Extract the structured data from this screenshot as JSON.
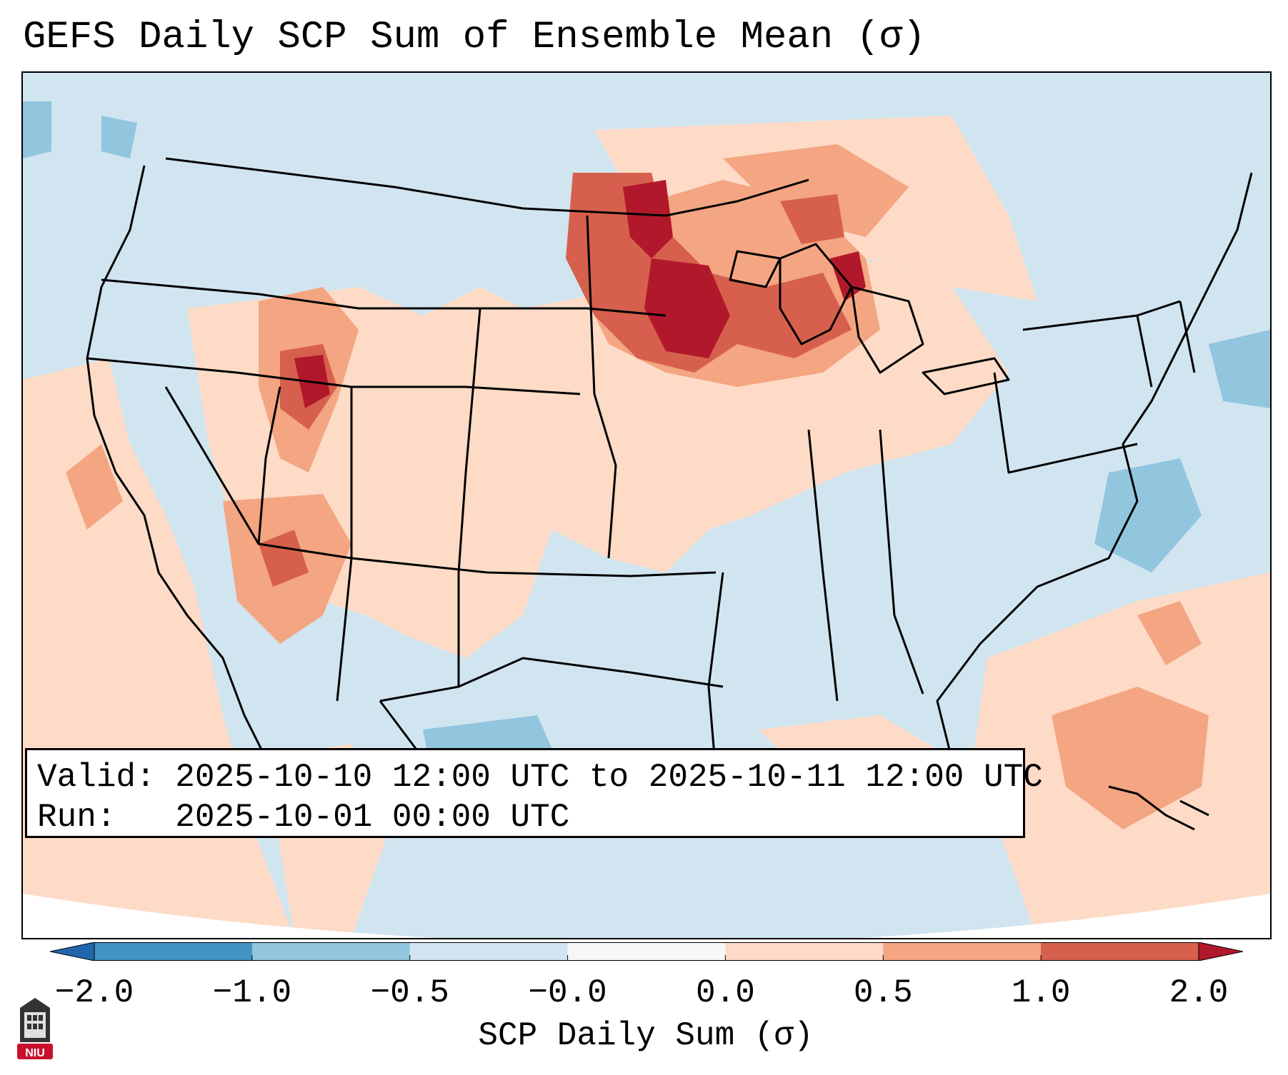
{
  "title": "GEFS Daily SCP Sum of Ensemble Mean (σ)",
  "info": {
    "valid_line": "Valid: 2025-10-10 12:00 UTC to 2025-10-11 12:00 UTC",
    "run_line": "Run:   2025-10-01 00:00 UTC"
  },
  "colorbar": {
    "label": "SCP Daily Sum (σ)",
    "ticks": [
      "−2.0",
      "−1.0",
      "−0.5",
      "−0.0",
      "0.0",
      "0.5",
      "1.0",
      "2.0"
    ],
    "bins": [
      {
        "range": "< -2.0",
        "color": "#2166ac"
      },
      {
        "range": "-2.0 to -1.0",
        "color": "#4393c3"
      },
      {
        "range": "-1.0 to -0.5",
        "color": "#92c5de"
      },
      {
        "range": "-0.5 to -0.0",
        "color": "#d1e5f0"
      },
      {
        "range": "-0.0 to 0.0",
        "color": "#f7f7f7"
      },
      {
        "range": "0.0 to 0.5",
        "color": "#fddbc7"
      },
      {
        "range": "0.5 to 1.0",
        "color": "#f4a582"
      },
      {
        "range": "1.0 to 2.0",
        "color": "#d6604d"
      },
      {
        "range": "> 2.0",
        "color": "#b2182b"
      }
    ]
  },
  "logo": {
    "text": "NIU",
    "icon": "university-tower-icon"
  }
}
